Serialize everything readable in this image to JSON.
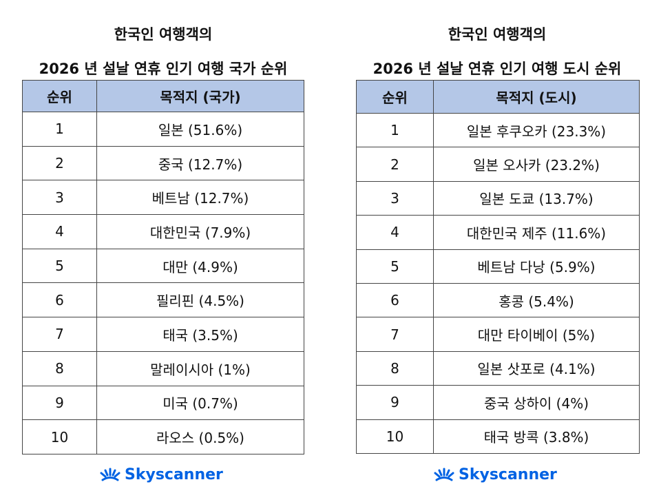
{
  "left": {
    "title_line1": "한국인 여행객의",
    "title_line2": "2026 년 설날 연휴 인기 여행 국가 순위",
    "headers": [
      "순위",
      "목적지 (국가)"
    ],
    "rows": [
      [
        "1",
        "일본 (51.6%)"
      ],
      [
        "2",
        "중국 (12.7%)"
      ],
      [
        "3",
        "베트남 (12.7%)"
      ],
      [
        "4",
        "대한민국 (7.9%)"
      ],
      [
        "5",
        "대만 (4.9%)"
      ],
      [
        "6",
        "필리핀 (4.5%)"
      ],
      [
        "7",
        "태국 (3.5%)"
      ],
      [
        "8",
        "말레이시아 (1%)"
      ],
      [
        "9",
        "미국 (0.7%)"
      ],
      [
        "10",
        "라오스 (0.5%)"
      ]
    ],
    "logo": "Skyscanner"
  },
  "right": {
    "title_line1": "한국인 여행객의",
    "title_line2": "2026 년 설날 연휴 인기 여행 도시 순위",
    "headers": [
      "순위",
      "목적지 (도시)"
    ],
    "rows": [
      [
        "1",
        "일본 후쿠오카 (23.3%)"
      ],
      [
        "2",
        "일본 오사카 (23.2%)"
      ],
      [
        "3",
        "일본 도쿄 (13.7%)"
      ],
      [
        "4",
        "대한민국 제주 (11.6%)"
      ],
      [
        "5",
        "베트남 다낭 (5.9%)"
      ],
      [
        "6",
        "홍콩 (5.4%)"
      ],
      [
        "7",
        "대만 타이베이 (5%)"
      ],
      [
        "8",
        "일본 삿포로 (4.1%)"
      ],
      [
        "9",
        "중국 상하이 (4%)"
      ],
      [
        "10",
        "태국 방콕 (3.8%)"
      ]
    ],
    "logo": "Skyscanner"
  }
}
